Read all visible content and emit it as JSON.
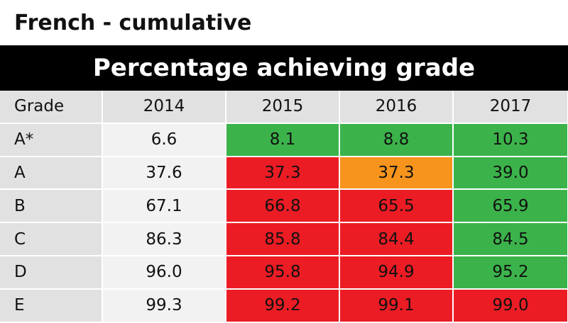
{
  "title": "French - cumulative",
  "banner": "Percentage achieving grade",
  "colors": {
    "green": "#3bb34a",
    "red": "#ec1c24",
    "orange": "#f7941d",
    "header_grey": "#e1e1e1",
    "base_grey": "#f2f2f2"
  },
  "chart_data": {
    "type": "table",
    "columns": [
      "Grade",
      "2014",
      "2015",
      "2016",
      "2017"
    ],
    "rows": [
      {
        "grade": "A*",
        "values": [
          "6.6",
          "8.1",
          "8.8",
          "10.3"
        ],
        "status": [
          "base",
          "green",
          "green",
          "green"
        ]
      },
      {
        "grade": "A",
        "values": [
          "37.6",
          "37.3",
          "37.3",
          "39.0"
        ],
        "status": [
          "base",
          "red",
          "orange",
          "green"
        ]
      },
      {
        "grade": "B",
        "values": [
          "67.1",
          "66.8",
          "65.5",
          "65.9"
        ],
        "status": [
          "base",
          "red",
          "red",
          "green"
        ]
      },
      {
        "grade": "C",
        "values": [
          "86.3",
          "85.8",
          "84.4",
          "84.5"
        ],
        "status": [
          "base",
          "red",
          "red",
          "green"
        ]
      },
      {
        "grade": "D",
        "values": [
          "96.0",
          "95.8",
          "94.9",
          "95.2"
        ],
        "status": [
          "base",
          "red",
          "red",
          "green"
        ]
      },
      {
        "grade": "E",
        "values": [
          "99.3",
          "99.2",
          "99.1",
          "99.0"
        ],
        "status": [
          "base",
          "red",
          "red",
          "red"
        ]
      }
    ]
  }
}
